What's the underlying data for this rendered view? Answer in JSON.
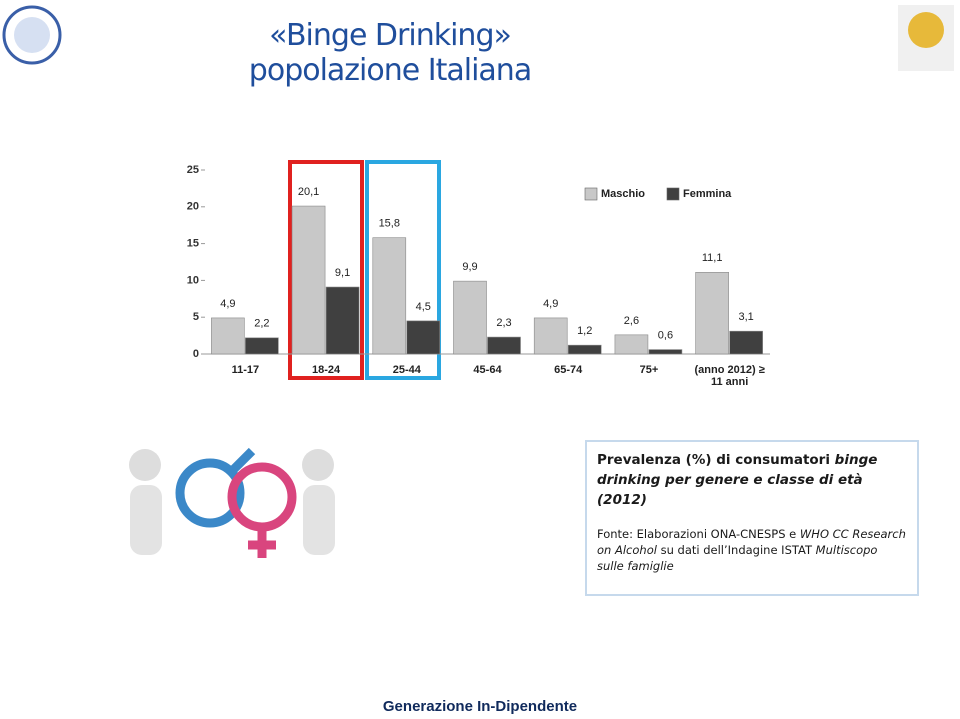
{
  "slide": {
    "title": "«Binge Drinking» popolazione Italiana",
    "caption": {
      "heading": [
        "Prevalenza (%) di consumatori",
        "binge drinking",
        "per genere e classe di età",
        "(2012)"
      ],
      "source": [
        "Fonte: Elaborazioni ONA-CNESPS e",
        "WHO CC Research on Alcohol",
        "su dati dell’Indagine ISTAT",
        "Multiscopo sulle famiglie"
      ]
    },
    "footer": "Generazione In-Dipendente"
  },
  "chart_data": {
    "type": "bar",
    "categories": [
      "11-17",
      "18-24",
      "25-44",
      "45-64",
      "65-74",
      "75+",
      "(anno 2012) ≥ 11 anni"
    ],
    "series": [
      {
        "name": "Maschio",
        "color": "#c8c8c8",
        "values": [
          4.9,
          20.1,
          15.8,
          9.9,
          4.9,
          2.6,
          11.1
        ],
        "value_labels": [
          "4,9",
          "20,1",
          "15,8",
          "9,9",
          "4,9",
          "2,6",
          "11,1"
        ]
      },
      {
        "name": "Femmina",
        "color": "#404040",
        "values": [
          2.2,
          9.1,
          4.5,
          2.3,
          1.2,
          0.6,
          3.1
        ],
        "value_labels": [
          "2,2",
          "9,1",
          "4,5",
          "2,3",
          "1,2",
          "0,6",
          "3,1"
        ]
      }
    ],
    "ylim": [
      0,
      25
    ],
    "yticks": [
      0,
      5,
      10,
      15,
      20,
      25
    ],
    "legend": "top-right"
  }
}
